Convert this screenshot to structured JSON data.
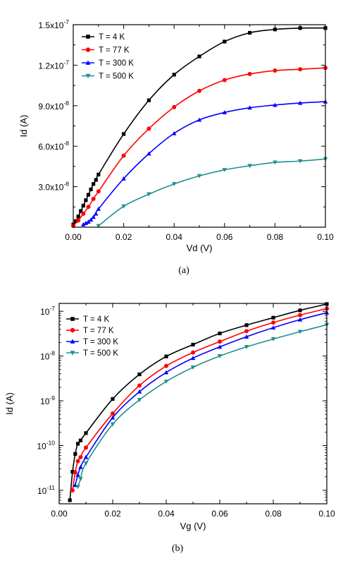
{
  "chart_data": [
    {
      "type": "line",
      "caption": "(a)",
      "xlabel": "Vd (V)",
      "ylabel": "Id (A)",
      "xlim": [
        0,
        0.1
      ],
      "ylim": [
        0,
        1.5e-07
      ],
      "yscale": "linear",
      "x_ticks": [
        {
          "value": 0.0,
          "label": "0.00"
        },
        {
          "value": 0.02,
          "label": "0.02"
        },
        {
          "value": 0.04,
          "label": "0.04"
        },
        {
          "value": 0.06,
          "label": "0.06"
        },
        {
          "value": 0.08,
          "label": "0.08"
        },
        {
          "value": 0.1,
          "label": "0.10"
        }
      ],
      "y_ticks": [
        {
          "value": 3e-08,
          "label": "3.0x10",
          "exp": "-8"
        },
        {
          "value": 6e-08,
          "label": "6.0x10",
          "exp": "-8"
        },
        {
          "value": 9e-08,
          "label": "9.0x10",
          "exp": "-8"
        },
        {
          "value": 1.2e-07,
          "label": "1.2x10",
          "exp": "-7"
        },
        {
          "value": 1.5e-07,
          "label": "1.5x10",
          "exp": "-7"
        }
      ],
      "legend_position": "top-left",
      "series": [
        {
          "name": "T = 4 K",
          "color": "#000000",
          "marker": "square",
          "x": [
            0,
            0.001,
            0.002,
            0.003,
            0.004,
            0.005,
            0.006,
            0.007,
            0.008,
            0.009,
            0.01,
            0.02,
            0.03,
            0.04,
            0.05,
            0.06,
            0.07,
            0.08,
            0.09,
            0.1
          ],
          "y": [
            2e-09,
            4.5e-09,
            8e-09,
            1.2e-08,
            1.6e-08,
            2e-08,
            2.4e-08,
            2.8e-08,
            3.2e-08,
            3.5e-08,
            3.9e-08,
            6.9e-08,
            9.4e-08,
            1.13e-07,
            1.265e-07,
            1.375e-07,
            1.44e-07,
            1.465e-07,
            1.475e-07,
            1.475e-07
          ]
        },
        {
          "name": "T = 77 K",
          "color": "#ff0000",
          "marker": "circle",
          "x": [
            0,
            0.002,
            0.004,
            0.006,
            0.008,
            0.01,
            0.02,
            0.03,
            0.04,
            0.05,
            0.06,
            0.07,
            0.08,
            0.09,
            0.1
          ],
          "y": [
            1e-09,
            5e-09,
            1e-08,
            1.5e-08,
            2.1e-08,
            2.65e-08,
            5.3e-08,
            7.3e-08,
            8.9e-08,
            1.01e-07,
            1.09e-07,
            1.135e-07,
            1.16e-07,
            1.17e-07,
            1.18e-07
          ]
        },
        {
          "name": "T = 300 K",
          "color": "#0000ff",
          "marker": "triangle-up",
          "x": [
            0.004,
            0.005,
            0.006,
            0.007,
            0.008,
            0.009,
            0.01,
            0.02,
            0.03,
            0.04,
            0.05,
            0.06,
            0.07,
            0.08,
            0.09,
            0.1
          ],
          "y": [
            2e-09,
            3e-09,
            4e-09,
            5.5e-09,
            7.5e-09,
            1e-08,
            1.35e-08,
            3.6e-08,
            5.45e-08,
            6.95e-08,
            7.95e-08,
            8.5e-08,
            8.85e-08,
            9.05e-08,
            9.2e-08,
            9.3e-08
          ]
        },
        {
          "name": "T = 500 K",
          "color": "#1f8f8f",
          "marker": "triangle-down",
          "x": [
            0.01,
            0.02,
            0.03,
            0.04,
            0.05,
            0.06,
            0.07,
            0.08,
            0.09,
            0.1
          ],
          "y": [
            1e-09,
            1.55e-08,
            2.45e-08,
            3.2e-08,
            3.8e-08,
            4.25e-08,
            4.55e-08,
            4.8e-08,
            4.9e-08,
            5.05e-08
          ]
        }
      ]
    },
    {
      "type": "line",
      "caption": "(b)",
      "xlabel": "Vg (V)",
      "ylabel": "Id (A)",
      "xlim": [
        0,
        0.1
      ],
      "ylim": [
        5e-12,
        1.5e-07
      ],
      "yscale": "log",
      "x_ticks": [
        {
          "value": 0.0,
          "label": "0.00"
        },
        {
          "value": 0.02,
          "label": "0.02"
        },
        {
          "value": 0.04,
          "label": "0.04"
        },
        {
          "value": 0.06,
          "label": "0.06"
        },
        {
          "value": 0.08,
          "label": "0.08"
        },
        {
          "value": 0.1,
          "label": "0.10"
        }
      ],
      "y_ticks": [
        {
          "value": 1e-11,
          "label": "10",
          "exp": "-11"
        },
        {
          "value": 1e-10,
          "label": "10",
          "exp": "-10"
        },
        {
          "value": 1e-09,
          "label": "10",
          "exp": "-9"
        },
        {
          "value": 1e-08,
          "label": "10",
          "exp": "-8"
        },
        {
          "value": 1e-07,
          "label": "10",
          "exp": "-7"
        }
      ],
      "legend_position": "top-left",
      "series": [
        {
          "name": "T = 4 K",
          "color": "#000000",
          "marker": "square",
          "x": [
            0.004,
            0.005,
            0.006,
            0.007,
            0.008,
            0.01,
            0.02,
            0.03,
            0.04,
            0.05,
            0.06,
            0.07,
            0.08,
            0.09,
            0.1
          ],
          "y": [
            6e-12,
            2.6e-11,
            6.5e-11,
            1.1e-10,
            1.3e-10,
            1.9e-10,
            1.1e-09,
            3.9e-09,
            9.8e-09,
            1.8e-08,
            3.2e-08,
            4.9e-08,
            7.2e-08,
            1.05e-07,
            1.45e-07
          ]
        },
        {
          "name": "T = 77 K",
          "color": "#ff0000",
          "marker": "circle",
          "x": [
            0.005,
            0.006,
            0.007,
            0.008,
            0.01,
            0.02,
            0.03,
            0.04,
            0.05,
            0.06,
            0.07,
            0.08,
            0.09,
            0.1
          ],
          "y": [
            1e-11,
            2.5e-11,
            4.5e-11,
            5.5e-11,
            9e-11,
            5.2e-10,
            2.2e-09,
            6e-09,
            1.2e-08,
            2.1e-08,
            3.6e-08,
            5.6e-08,
            8.2e-08,
            1.15e-07
          ]
        },
        {
          "name": "T = 300 K",
          "color": "#0000ff",
          "marker": "triangle-up",
          "x": [
            0.006,
            0.007,
            0.008,
            0.01,
            0.02,
            0.03,
            0.04,
            0.05,
            0.06,
            0.07,
            0.08,
            0.09,
            0.1
          ],
          "y": [
            1.3e-11,
            2.2e-11,
            3.3e-11,
            5.5e-11,
            4.2e-10,
            1.6e-09,
            4.3e-09,
            9e-09,
            1.6e-08,
            2.7e-08,
            4.3e-08,
            6.5e-08,
            9.3e-08
          ]
        },
        {
          "name": "T = 500 K",
          "color": "#1f8f8f",
          "marker": "triangle-down",
          "x": [
            0.007,
            0.008,
            0.01,
            0.02,
            0.03,
            0.04,
            0.05,
            0.06,
            0.07,
            0.08,
            0.09,
            0.1
          ],
          "y": [
            1.2e-11,
            1.8e-11,
            4e-11,
            3e-10,
            1.05e-09,
            2.7e-09,
            5.6e-09,
            1e-08,
            1.6e-08,
            2.4e-08,
            3.5e-08,
            5e-08
          ]
        }
      ]
    }
  ]
}
